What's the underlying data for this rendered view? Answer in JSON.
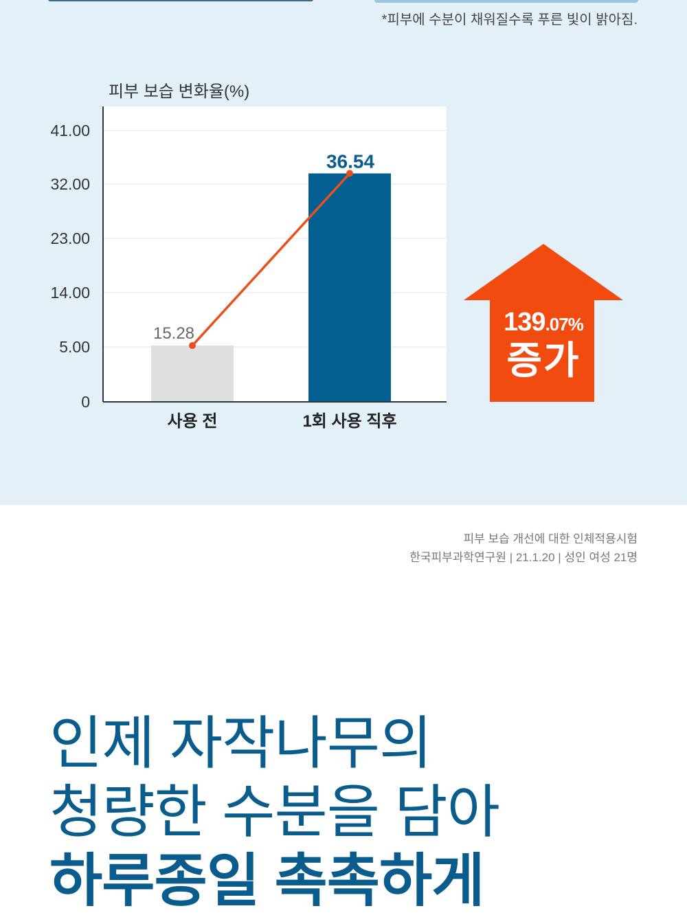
{
  "footnote": "*피부에 수분이 채워질수록 푸른 빛이 밝아짐.",
  "chart_data": {
    "type": "bar",
    "ylabel": "피부 보습 변화율(%)",
    "categories": [
      "사용 전",
      "1회 사용 직후"
    ],
    "values": [
      15.28,
      36.54
    ],
    "data_labels": [
      "15.28",
      "36.54"
    ],
    "yticks": [
      "0",
      "5.00",
      "14.00",
      "23.00",
      "32.00",
      "41.00"
    ],
    "ylim": [
      0,
      41
    ],
    "grid": true,
    "bar_colors": [
      "#dedfe0",
      "#035f91"
    ],
    "line_color": "#e8501e",
    "line_overlay": true
  },
  "badge": {
    "percent_main": "139",
    "percent_sub": ".07%",
    "word": "증가",
    "color": "#f24b0f",
    "icon": "up-arrow-icon"
  },
  "source": {
    "line1": "피부 보습 개선에 대한 인체적용시험",
    "line2": "한국피부과학연구원 | 21.1.20 | 성인 여성 21명"
  },
  "headline": {
    "line1": "인제 자작나무의",
    "line2": "청량한 수분을 담아",
    "line3": "하루종일 촉촉하게"
  }
}
